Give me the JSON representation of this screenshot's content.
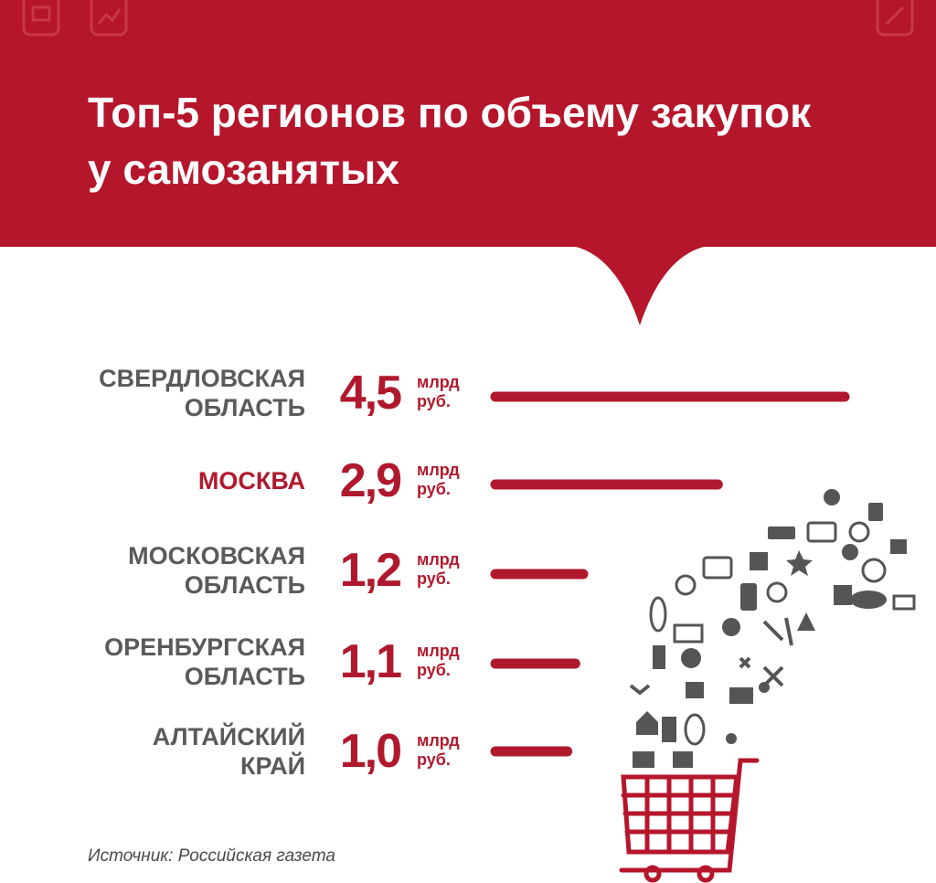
{
  "header": {
    "title_line1": "Топ-5 регионов по объему закупок",
    "title_line2": "у самозанятых",
    "bg_color": "#b5162b"
  },
  "chart_data": {
    "type": "bar",
    "categories": [
      "Свердловская область",
      "Москва",
      "Московская область",
      "Оренбургская область",
      "Алтайский край"
    ],
    "category_lines": [
      [
        "Свердловская",
        "область"
      ],
      [
        "Москва"
      ],
      [
        "Московская",
        "область"
      ],
      [
        "Оренбургская",
        "область"
      ],
      [
        "Алтайский",
        "край"
      ]
    ],
    "values": [
      4.5,
      2.9,
      1.2,
      1.1,
      1.0
    ],
    "value_labels": [
      "4,5",
      "2,9",
      "1,2",
      "1,1",
      "1,0"
    ],
    "unit_lines": [
      "млрд",
      "руб."
    ],
    "highlight_index": 1,
    "bar_color": "#b0192d",
    "orientation": "horizontal"
  },
  "footer": {
    "source": "Источник: Российская газета"
  },
  "icons": [
    "document-icon",
    "chart-icon",
    "edit-icon",
    "shopping-cart-icon"
  ]
}
